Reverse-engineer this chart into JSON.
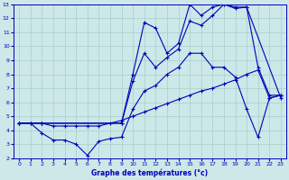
{
  "title": "Graphe des températures (°c)",
  "background_color": "#cce8e8",
  "line_color": "#0000bb",
  "grid_color": "#aacccc",
  "xlim": [
    -0.5,
    23.5
  ],
  "ylim": [
    2,
    13
  ],
  "xticks": [
    0,
    1,
    2,
    3,
    4,
    5,
    6,
    7,
    8,
    9,
    10,
    11,
    12,
    13,
    14,
    15,
    16,
    17,
    18,
    19,
    20,
    21,
    22,
    23
  ],
  "yticks": [
    2,
    3,
    4,
    5,
    6,
    7,
    8,
    9,
    10,
    11,
    12,
    13
  ],
  "line1_x": [
    0,
    1,
    2,
    3,
    4,
    5,
    6,
    7,
    8,
    9,
    10,
    11,
    12,
    13,
    14,
    15,
    16,
    17,
    18,
    19,
    20,
    21,
    22,
    23
  ],
  "line1_y": [
    4.5,
    4.5,
    3.8,
    3.3,
    3.3,
    3.0,
    2.2,
    3.2,
    3.4,
    3.5,
    5.5,
    6.8,
    7.2,
    8.0,
    8.5,
    9.5,
    9.5,
    8.5,
    8.5,
    7.8,
    5.5,
    3.5,
    6.3,
    6.5
  ],
  "line2_x": [
    0,
    1,
    2,
    3,
    4,
    5,
    6,
    7,
    8,
    9,
    10,
    11,
    12,
    13,
    14,
    15,
    16,
    17,
    18,
    19,
    20,
    21,
    22,
    23
  ],
  "line2_y": [
    4.5,
    4.5,
    4.5,
    4.3,
    4.3,
    4.3,
    4.3,
    4.3,
    4.5,
    4.7,
    5.0,
    5.3,
    5.6,
    5.9,
    6.2,
    6.5,
    6.8,
    7.0,
    7.3,
    7.6,
    8.0,
    8.3,
    6.3,
    6.5
  ],
  "line3_x": [
    0,
    2,
    9,
    10,
    11,
    12,
    13,
    14,
    15,
    16,
    17,
    18,
    19,
    20,
    21,
    22,
    23
  ],
  "line3_y": [
    4.5,
    4.5,
    4.5,
    7.5,
    9.5,
    8.5,
    9.2,
    9.8,
    11.8,
    11.5,
    12.2,
    13.0,
    12.8,
    12.8,
    8.5,
    6.5,
    6.5
  ],
  "line4_x": [
    0,
    2,
    9,
    10,
    11,
    12,
    13,
    14,
    15,
    16,
    17,
    18,
    19,
    20,
    23
  ],
  "line4_y": [
    4.5,
    4.5,
    4.5,
    8.0,
    11.7,
    11.3,
    9.5,
    10.2,
    13.0,
    12.2,
    12.8,
    13.0,
    12.7,
    12.8,
    6.3
  ]
}
